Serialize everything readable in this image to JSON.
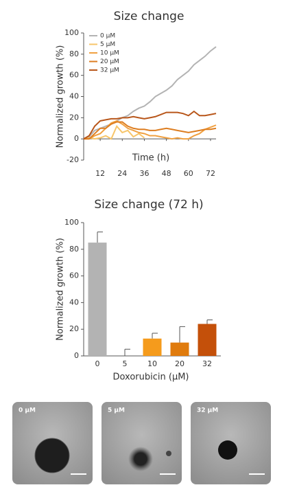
{
  "chart_data": [
    {
      "type": "line",
      "title": "Size change",
      "ylabel": "Normalized growth (%)",
      "xlabel": "Time (h)",
      "x": [
        3,
        6,
        9,
        12,
        15,
        18,
        21,
        24,
        27,
        30,
        33,
        36,
        39,
        42,
        45,
        48,
        51,
        54,
        57,
        60,
        63,
        66,
        69,
        72,
        75
      ],
      "xlim": [
        3,
        75
      ],
      "xticks": [
        12,
        24,
        36,
        48,
        60,
        72
      ],
      "ylim": [
        -20,
        100
      ],
      "yticks": [
        -20,
        0,
        20,
        40,
        60,
        80,
        100
      ],
      "series": [
        {
          "name": "0 μM",
          "color": "#b3b3b3",
          "values": [
            0,
            2,
            8,
            10,
            12,
            14,
            17,
            20,
            22,
            26,
            29,
            31,
            35,
            40,
            43,
            46,
            50,
            56,
            60,
            64,
            70,
            74,
            78,
            83,
            87
          ]
        },
        {
          "name": "5 μM",
          "color": "#f7c56a",
          "values": [
            0,
            1,
            0,
            1,
            3,
            0,
            12,
            6,
            8,
            2,
            5,
            1,
            null,
            null,
            null,
            null,
            null,
            null,
            null,
            null,
            null,
            null,
            null,
            null,
            null
          ]
        },
        {
          "name": "10 μM",
          "color": "#f0a040",
          "values": [
            0,
            0,
            3,
            5,
            10,
            15,
            17,
            14,
            10,
            8,
            6,
            5,
            3,
            3,
            2,
            1,
            0,
            1,
            0,
            0,
            3,
            5,
            9,
            11,
            13
          ]
        },
        {
          "name": "20 μM",
          "color": "#dd7d20",
          "values": [
            0,
            0,
            5,
            10,
            10,
            14,
            16,
            16,
            12,
            10,
            9,
            9,
            8,
            8,
            9,
            10,
            9,
            8,
            7,
            6,
            7,
            8,
            9,
            9,
            10
          ]
        },
        {
          "name": "32 μM",
          "color": "#b8561a",
          "values": [
            0,
            3,
            12,
            17,
            18,
            19,
            19,
            20,
            20,
            21,
            20,
            19,
            20,
            21,
            23,
            25,
            25,
            25,
            24,
            22,
            26,
            22,
            22,
            23,
            24
          ]
        }
      ]
    },
    {
      "type": "bar",
      "title": "Size change (72 h)",
      "ylabel": "Normalized growth (%)",
      "xlabel": "Doxorubicin (μM)",
      "categories": [
        "0",
        "5",
        "10",
        "20",
        "32"
      ],
      "values": [
        85,
        0,
        13,
        10,
        24
      ],
      "errors": [
        8,
        5,
        4,
        12,
        3
      ],
      "colors": [
        "#b3b3b3",
        "#f7c56a",
        "#f59b1c",
        "#e07b0d",
        "#c4500a"
      ],
      "ylim": [
        0,
        100
      ],
      "yticks": [
        0,
        20,
        40,
        60,
        80,
        100
      ]
    }
  ],
  "images": [
    {
      "label": "0 μM"
    },
    {
      "label": "5 μM"
    },
    {
      "label": "32 μM"
    }
  ]
}
